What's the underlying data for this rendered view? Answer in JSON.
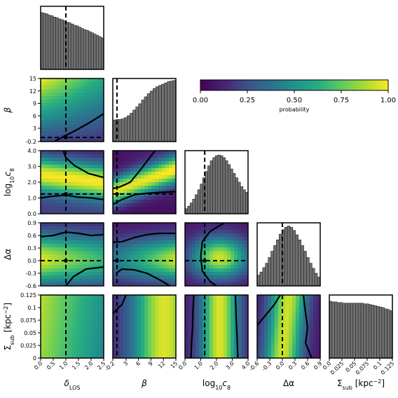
{
  "chart_data": {
    "type": "heatmap",
    "subtype": "corner-plot",
    "parameters": [
      {
        "key": "delta_los",
        "label": "δ_LOS",
        "range": [
          0.0,
          2.5
        ],
        "truth": 1.0,
        "ticks": [
          "0.0",
          "0.5",
          "1.0",
          "1.5",
          "2.0",
          "2.5"
        ],
        "tick_values": [
          0.0,
          0.5,
          1.0,
          1.5,
          2.0,
          2.5
        ]
      },
      {
        "key": "beta",
        "label": "β",
        "range": [
          -0.2,
          15
        ],
        "truth": 0.8,
        "ticks": [
          "-0.2",
          "3",
          "6",
          "9",
          "12",
          "15"
        ],
        "tick_values": [
          -0.2,
          3,
          6,
          9,
          12,
          15
        ]
      },
      {
        "key": "log10c8",
        "label": "log10c8",
        "range": [
          0.0,
          4.0
        ],
        "truth": 1.25,
        "ticks": [
          "0.0",
          "1.0",
          "2.0",
          "3.0",
          "4.0"
        ],
        "tick_values": [
          0.0,
          1.0,
          2.0,
          3.0,
          4.0
        ]
      },
      {
        "key": "delta_alpha",
        "label": "Δα",
        "range": [
          -0.6,
          0.9
        ],
        "truth": 0.0,
        "ticks": [
          "-0.6",
          "-0.3",
          "0.0",
          "0.3",
          "0.6",
          "0.9"
        ],
        "tick_values": [
          -0.6,
          -0.3,
          0.0,
          0.3,
          0.6,
          0.9
        ]
      },
      {
        "key": "sigma_sub",
        "label": "Σ_sub [kpc⁻²]",
        "range": [
          0.0,
          0.125
        ],
        "truth": null,
        "ticks": [
          "0.0",
          "0.025",
          "0.05",
          "0.075",
          "0.1",
          "0.125"
        ],
        "tick_values": [
          0.0,
          0.025,
          0.05,
          0.075,
          0.1,
          0.125
        ]
      }
    ],
    "y_tick_labels": {
      "beta": [
        "-0.2",
        "3",
        "6",
        "9",
        "12",
        "15"
      ],
      "log10c8": [
        "0.0",
        "1.0",
        "2.0",
        "3.0",
        "4.0"
      ],
      "delta_alpha": [
        "-0.6",
        "-0.3",
        "0.0",
        "0.3",
        "0.6",
        "0.9"
      ],
      "sigma_sub": [
        "0",
        "0.025",
        "0.05",
        "0.075",
        "0.1",
        "0.125"
      ]
    },
    "labels": {
      "delta_los_main": "δ",
      "delta_los_sub": "LOS",
      "beta": "β",
      "log_main": "log",
      "log_sub1": "10",
      "log_c": "c",
      "log_sub2": "8",
      "delta_alpha": "Δα",
      "sigma_main": "Σ",
      "sigma_sub": "sub",
      "sigma_unit": " [kpc",
      "sigma_exp": "−2",
      "sigma_close": "]"
    },
    "histograms": {
      "delta_los": [
        0.9,
        0.89,
        0.88,
        0.86,
        0.85,
        0.83,
        0.82,
        0.8,
        0.79,
        0.77,
        0.75,
        0.74,
        0.72,
        0.7,
        0.69,
        0.67,
        0.65,
        0.63,
        0.62,
        0.6,
        0.58,
        0.56,
        0.54,
        0.52,
        0.5
      ],
      "beta": [
        0.34,
        0.35,
        0.35,
        0.36,
        0.38,
        0.41,
        0.45,
        0.5,
        0.55,
        0.6,
        0.66,
        0.71,
        0.76,
        0.8,
        0.84,
        0.87,
        0.89,
        0.91,
        0.93,
        0.95,
        0.96,
        0.97
      ],
      "log10c8": [
        0.08,
        0.12,
        0.17,
        0.23,
        0.3,
        0.38,
        0.47,
        0.57,
        0.67,
        0.76,
        0.84,
        0.89,
        0.92,
        0.93,
        0.92,
        0.89,
        0.84,
        0.78,
        0.71,
        0.64,
        0.57,
        0.5,
        0.43,
        0.38,
        0.34
      ],
      "delta_alpha": [
        0.17,
        0.22,
        0.29,
        0.36,
        0.45,
        0.55,
        0.64,
        0.73,
        0.82,
        0.89,
        0.93,
        0.95,
        0.93,
        0.88,
        0.81,
        0.73,
        0.64,
        0.55,
        0.45,
        0.36,
        0.28,
        0.2,
        0.14
      ],
      "sigma_sub": [
        0.9,
        0.89,
        0.89,
        0.88,
        0.88,
        0.87,
        0.87,
        0.87,
        0.87,
        0.87,
        0.87,
        0.87,
        0.87,
        0.86,
        0.86,
        0.85,
        0.84,
        0.83,
        0.82,
        0.81,
        0.8,
        0.78,
        0.77,
        0.75
      ]
    },
    "colorbar": {
      "colormap": "viridis",
      "range": [
        0.0,
        1.0
      ],
      "ticks": [
        "0.00",
        "0.25",
        "0.50",
        "0.75",
        "1.00"
      ],
      "tick_values": [
        0.0,
        0.25,
        0.5,
        0.75,
        1.0
      ],
      "label": "probability",
      "orientation": "horizontal"
    },
    "colors": {
      "histogram_bar": "#707070",
      "truth_line": "#000000",
      "contour": "#000000"
    }
  }
}
